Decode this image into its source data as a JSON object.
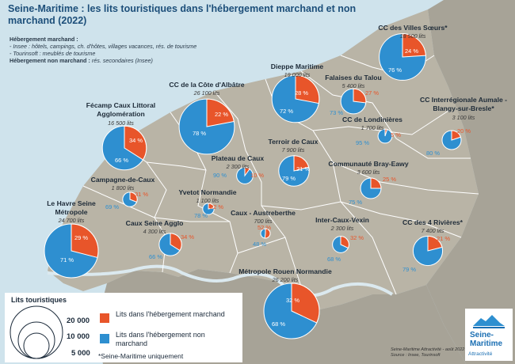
{
  "title": "Seine-Maritime : les lits touristiques dans l'hébergement marchand et non marchand (2022)",
  "legend_top": {
    "heading": "Hébergement marchand :",
    "line1": "- Insee : hôtels, campings, ch. d'hôtes, villages vacances, rés. de tourisme",
    "line2": "- Tourinsoft : meublés de tourisme",
    "heading2": "Hébergement non marchand :",
    "heading2_detail": "rés. secondaires (Insee)"
  },
  "legend_box": {
    "title": "Lits touristiques",
    "sizes": [
      "20 000",
      "10 000",
      "5 000"
    ],
    "marchand_label": "Lits dans l'hébergement marchand",
    "non_marchand_label": "Lits dans l'hébergement non marchand",
    "note": "*Seine-Maritime uniquement"
  },
  "source": {
    "line1": "Seine-Maritime Attractivité - août 2022",
    "line2": "Source : Insee, Tourinsoft"
  },
  "logo": {
    "line1": "Seine-",
    "line2": "Maritime",
    "line3": "Attractivité"
  },
  "colors": {
    "marchand": "#e8552a",
    "non_marchand": "#2e8fd0",
    "land": "#b9b4a6",
    "sea": "#cfe3ec"
  },
  "territories": [
    {
      "name": "CC des Villes Sœurs*",
      "count": "18 500 lits",
      "beds": 18500,
      "pct_m": "24 %",
      "pct_n": "76 %",
      "m": 24
    },
    {
      "name": "Dieppe Maritime",
      "count": "19 000 lits",
      "beds": 19000,
      "pct_m": "28 %",
      "pct_n": "72 %",
      "m": 28
    },
    {
      "name": "Falaises du Talou",
      "count": "5 400 lits",
      "beds": 5400,
      "pct_m": "27 %",
      "pct_n": "73 %",
      "m": 27
    },
    {
      "name": "CC de la Côte d'Albâtre",
      "count": "26 100 lits",
      "beds": 26100,
      "pct_m": "22 %",
      "pct_n": "78 %",
      "m": 22
    },
    {
      "name": "Fécamp Caux Littoral Agglomération",
      "count": "16 500 lits",
      "beds": 16500,
      "pct_m": "34 %",
      "pct_n": "66 %",
      "m": 34
    },
    {
      "name": "CC de Londinières",
      "count": "1 700 lits",
      "beds": 1700,
      "pct_m": "5 %",
      "pct_n": "95 %",
      "m": 5
    },
    {
      "name": "CC Interrégionale Aumale - Blangy-sur-Bresle*",
      "count": "3 100 lits",
      "beds": 3100,
      "pct_m": "20 %",
      "pct_n": "80 %",
      "m": 20
    },
    {
      "name": "Terroir de Caux",
      "count": "7 900 lits",
      "beds": 7900,
      "pct_m": "21 %",
      "pct_n": "79 %",
      "m": 21
    },
    {
      "name": "Plateau de Caux",
      "count": "2 300 lits",
      "beds": 2300,
      "pct_m": "10 %",
      "pct_n": "90 %",
      "m": 10
    },
    {
      "name": "Communauté Bray-Eawy",
      "count": "3 600 lits",
      "beds": 3600,
      "pct_m": "25 %",
      "pct_n": "75 %",
      "m": 25
    },
    {
      "name": "Campagne-de-Caux",
      "count": "1 800 lits",
      "beds": 1800,
      "pct_m": "31 %",
      "pct_n": "69 %",
      "m": 31
    },
    {
      "name": "Yvetot Normandie",
      "count": "1 100 lits",
      "beds": 1100,
      "pct_m": "22 %",
      "pct_n": "78 %",
      "m": 22
    },
    {
      "name": "Le Havre Seine Métropole",
      "count": "24 700 lits",
      "beds": 24700,
      "pct_m": "29 %",
      "pct_n": "71 %",
      "m": 29
    },
    {
      "name": "Caux Seine Agglo",
      "count": "4 300 lits",
      "beds": 4300,
      "pct_m": "34 %",
      "pct_n": "66 %",
      "m": 34
    },
    {
      "name": "Caux - Austreberthe",
      "count": "700 lits",
      "beds": 700,
      "pct_m": "52 %",
      "pct_n": "48 %",
      "m": 52
    },
    {
      "name": "Inter-Caux-Vexin",
      "count": "2 300 lits",
      "beds": 2300,
      "pct_m": "32 %",
      "pct_n": "68 %",
      "m": 32
    },
    {
      "name": "CC des 4 Rivières*",
      "count": "7 400 lits",
      "beds": 7400,
      "pct_m": "21 %",
      "pct_n": "79 %",
      "m": 21
    },
    {
      "name": "Métropole Rouen Normandie",
      "count": "26 200 lits",
      "beds": 26200,
      "pct_m": "32 %",
      "pct_n": "68 %",
      "m": 32
    }
  ]
}
